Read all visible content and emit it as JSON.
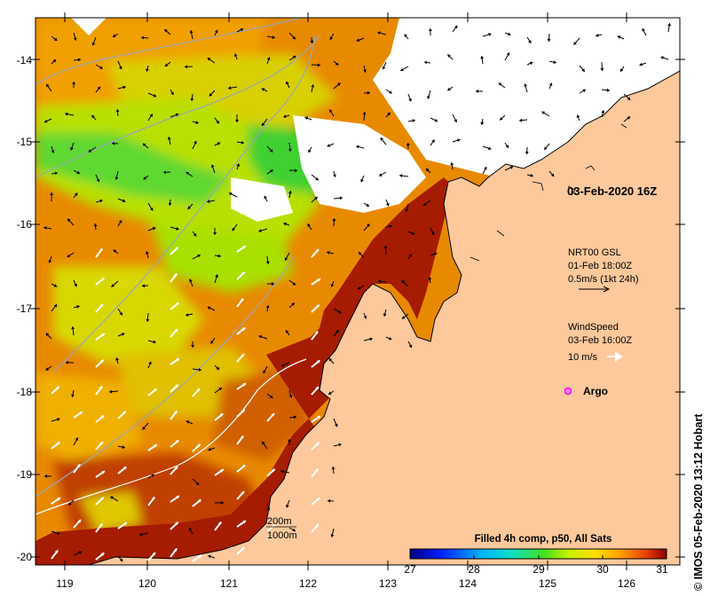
{
  "map": {
    "x_ticks": [
      "119",
      "120",
      "121",
      "122",
      "123",
      "124",
      "125",
      "126"
    ],
    "y_ticks": [
      "-14",
      "-15",
      "-16",
      "-17",
      "-18",
      "-19",
      "-20"
    ],
    "x_range": [
      118.6,
      126.7
    ],
    "y_range": [
      -20.1,
      -13.5
    ],
    "colors": {
      "land": "#fcc89c",
      "cloud": "#ffffff",
      "sst_hot": "#a51c00",
      "sst_warm": "#e88a00",
      "sst_mid": "#c8e000",
      "sst_cool": "#3cd52c",
      "bathymetry": "#9aa5b4",
      "current_arrow": "#000000",
      "wind_arrow": "#ffffff",
      "argo": "#ff00ff"
    }
  },
  "annotations": {
    "timestamp": "03-Feb-2020 16Z",
    "current_title": "NRT00 GSL",
    "current_time": "01-Feb 18:00Z",
    "current_scale": "0.5m/s (1kt 24h)",
    "wind_title": "WindSpeed",
    "wind_time": "03-Feb 16:00Z",
    "wind_scale": "10 m/s",
    "argo_label": "Argo",
    "depth_200": "200m",
    "depth_1000": "1000m"
  },
  "colorbar": {
    "title": "Filled 4h comp, p50, All Sats",
    "ticks": [
      "27",
      "28",
      "29",
      "30",
      "31"
    ],
    "range": [
      27,
      31
    ]
  },
  "copyright": "© IMOS 05-Feb-2020 13:12 Hobart"
}
